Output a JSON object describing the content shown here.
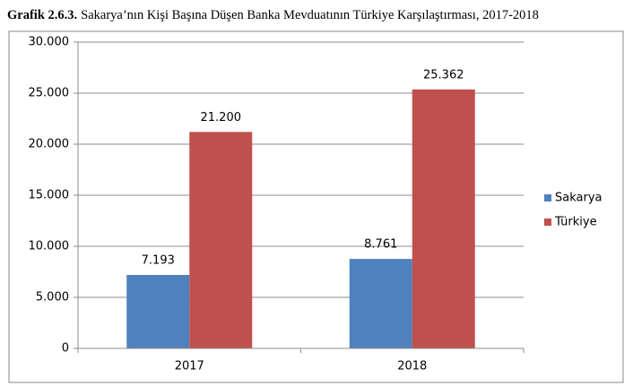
{
  "chart_data": {
    "type": "bar",
    "figure_label": "Grafik 2.6.3.",
    "title": "Sakarya’nın Kişi Başına Düşen Banka Mevduatının Türkiye Karşılaştırması, 2017-2018",
    "categories": [
      "2017",
      "2018"
    ],
    "series": [
      {
        "name": "Sakarya",
        "color": "#4f81bd",
        "values": [
          7193,
          8761
        ],
        "value_labels": [
          "7.193",
          "8.761"
        ]
      },
      {
        "name": "Türkiye",
        "color": "#c0504d",
        "values": [
          21200,
          25362
        ],
        "value_labels": [
          "21.200",
          "25.362"
        ]
      }
    ],
    "ylim": [
      0,
      30000
    ],
    "yticks": [
      0,
      {
        "value": 5000,
        "label": "5.000"
      },
      {
        "value": 10000,
        "label": "10.000"
      },
      {
        "value": 15000,
        "label": "15.000"
      },
      {
        "value": 20000,
        "label": "20.000"
      },
      {
        "value": 25000,
        "label": "25.000"
      },
      {
        "value": 30000,
        "label": "30.000"
      }
    ],
    "grid": true,
    "legend": "right"
  }
}
